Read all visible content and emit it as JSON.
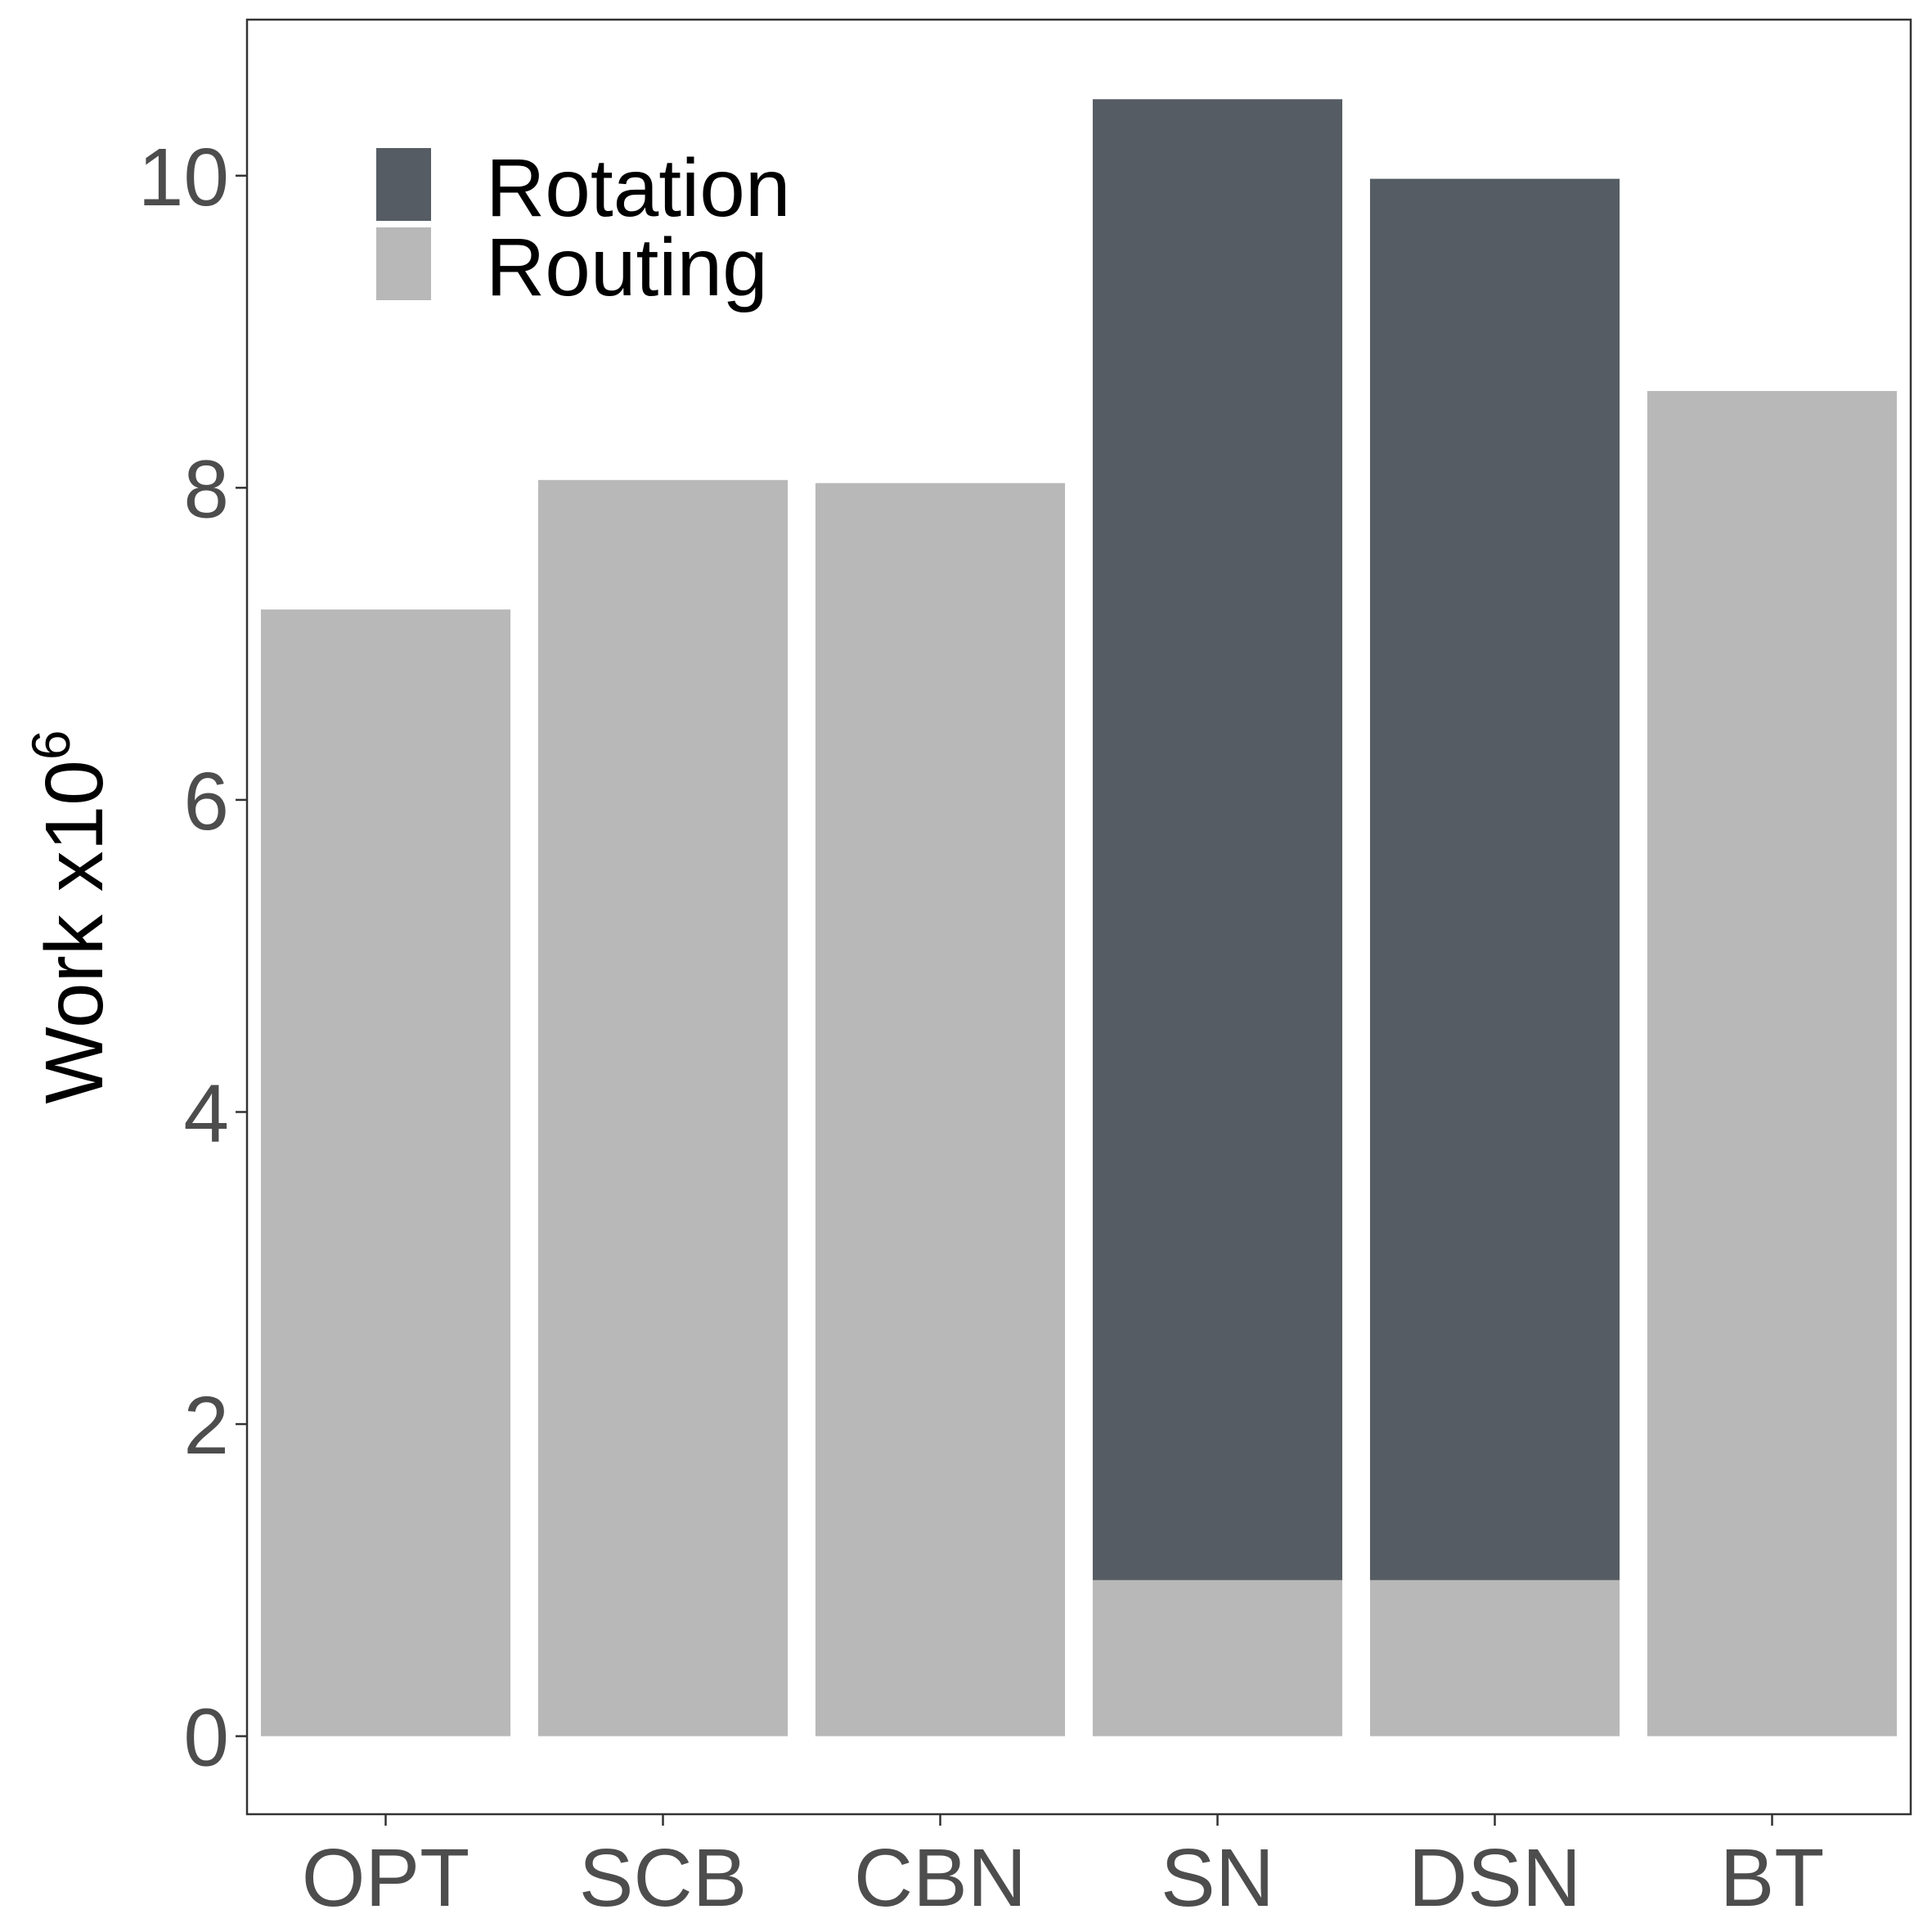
{
  "chart_data": {
    "type": "bar",
    "stacked": true,
    "categories": [
      "OPT",
      "SCB",
      "CBN",
      "SN",
      "DSN",
      "BT"
    ],
    "series": [
      {
        "name": "Routing",
        "values": [
          7.22,
          8.05,
          8.03,
          1.0,
          1.0,
          8.62
        ],
        "color": "#b8b8b8"
      },
      {
        "name": "Rotation",
        "values": [
          0,
          0,
          0,
          9.49,
          8.98,
          0
        ],
        "color": "#555c63"
      }
    ],
    "ylabel_main": "Work x10",
    "ylabel_exponent": "6",
    "yticks": [
      0,
      2,
      4,
      6,
      8,
      10
    ],
    "ylim": [
      -0.5,
      11.0
    ],
    "legend_placement": "top-left",
    "grid": false
  }
}
